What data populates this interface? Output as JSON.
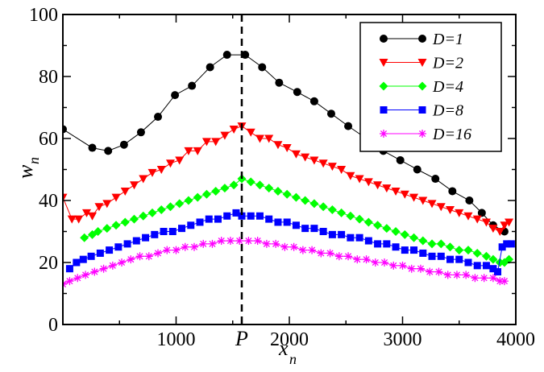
{
  "chart_data": {
    "type": "line",
    "xlim": [
      0,
      4000
    ],
    "ylim": [
      0,
      100
    ],
    "xticks": [
      1000,
      2000,
      3000,
      4000
    ],
    "yticks": [
      0,
      20,
      40,
      60,
      80,
      100
    ],
    "xlabel": "x",
    "xlabel_sub": "n",
    "ylabel": "w",
    "ylabel_sub": "n",
    "marker_line": {
      "x": 1580,
      "label": "P"
    },
    "legend_position": "top-right",
    "grid": false,
    "series": [
      {
        "name": "D=1",
        "color": "#000000",
        "marker": "circle",
        "x": [
          0,
          260,
          400,
          540,
          690,
          840,
          990,
          1140,
          1300,
          1450,
          1610,
          1760,
          1910,
          2070,
          2220,
          2370,
          2520,
          2680,
          2830,
          2980,
          3130,
          3290,
          3440,
          3590,
          3700,
          3800,
          3900
        ],
        "y": [
          63,
          57,
          56,
          58,
          62,
          67,
          74,
          77,
          83,
          87,
          87,
          83,
          78,
          75,
          72,
          68,
          64,
          60,
          56,
          53,
          50,
          47,
          43,
          40,
          36,
          32,
          30
        ]
      },
      {
        "name": "D=2",
        "color": "#ff0000",
        "marker": "triangle-down",
        "x": [
          0,
          80,
          140,
          210,
          260,
          320,
          390,
          470,
          550,
          630,
          710,
          790,
          870,
          950,
          1030,
          1110,
          1190,
          1270,
          1350,
          1430,
          1510,
          1580,
          1660,
          1740,
          1820,
          1900,
          1980,
          2060,
          2140,
          2220,
          2300,
          2380,
          2460,
          2540,
          2620,
          2700,
          2780,
          2860,
          2940,
          3020,
          3100,
          3180,
          3260,
          3340,
          3420,
          3500,
          3580,
          3660,
          3740,
          3800,
          3860,
          3900,
          3940
        ],
        "y": [
          41,
          34,
          34,
          36,
          35,
          38,
          39,
          41,
          43,
          45,
          47,
          49,
          50,
          52,
          53,
          56,
          56,
          59,
          59,
          61,
          63,
          64,
          62,
          60,
          60,
          58,
          57,
          55,
          54,
          53,
          52,
          51,
          50,
          48,
          47,
          46,
          45,
          44,
          43,
          42,
          41,
          40,
          39,
          38,
          37,
          36,
          35,
          34,
          33,
          31,
          30,
          32,
          33
        ]
      },
      {
        "name": "D=4",
        "color": "#00ff00",
        "marker": "diamond",
        "x": [
          190,
          260,
          310,
          390,
          470,
          550,
          630,
          710,
          790,
          870,
          950,
          1030,
          1110,
          1190,
          1270,
          1350,
          1430,
          1510,
          1580,
          1660,
          1740,
          1820,
          1900,
          1980,
          2060,
          2140,
          2220,
          2300,
          2380,
          2460,
          2540,
          2620,
          2700,
          2780,
          2860,
          2940,
          3020,
          3100,
          3180,
          3260,
          3340,
          3420,
          3500,
          3580,
          3660,
          3740,
          3800,
          3860,
          3900,
          3940
        ],
        "y": [
          28,
          29,
          30,
          31,
          32,
          33,
          34,
          35,
          36,
          37,
          38,
          39,
          40,
          41,
          42,
          43,
          44,
          45,
          47,
          46,
          45,
          44,
          43,
          42,
          41,
          40,
          39,
          38,
          37,
          36,
          35,
          34,
          33,
          32,
          31,
          30,
          29,
          28,
          27,
          26,
          26,
          25,
          24,
          24,
          23,
          22,
          21,
          20,
          20,
          21
        ]
      },
      {
        "name": "D=8",
        "color": "#0000ff",
        "marker": "square",
        "x": [
          60,
          120,
          180,
          250,
          330,
          410,
          490,
          570,
          650,
          730,
          810,
          890,
          970,
          1050,
          1130,
          1210,
          1290,
          1370,
          1450,
          1530,
          1580,
          1660,
          1740,
          1820,
          1900,
          1980,
          2060,
          2140,
          2220,
          2300,
          2380,
          2460,
          2540,
          2620,
          2700,
          2780,
          2860,
          2940,
          3020,
          3100,
          3180,
          3260,
          3340,
          3420,
          3500,
          3580,
          3660,
          3740,
          3800,
          3840,
          3880,
          3920,
          3960
        ],
        "y": [
          18,
          20,
          21,
          22,
          23,
          24,
          25,
          26,
          27,
          28,
          29,
          30,
          30,
          31,
          32,
          33,
          34,
          34,
          35,
          36,
          35,
          35,
          35,
          34,
          33,
          33,
          32,
          31,
          31,
          30,
          29,
          29,
          28,
          28,
          27,
          26,
          26,
          25,
          24,
          24,
          23,
          22,
          22,
          21,
          21,
          20,
          19,
          19,
          18,
          17,
          25,
          26,
          26
        ]
      },
      {
        "name": "D=16",
        "color": "#ff00ff",
        "marker": "asterisk",
        "x": [
          0,
          60,
          130,
          200,
          280,
          360,
          440,
          520,
          600,
          680,
          760,
          840,
          920,
          1000,
          1080,
          1160,
          1240,
          1320,
          1400,
          1480,
          1560,
          1640,
          1720,
          1800,
          1880,
          1960,
          2040,
          2120,
          2200,
          2280,
          2360,
          2440,
          2520,
          2600,
          2680,
          2760,
          2840,
          2920,
          3000,
          3080,
          3160,
          3240,
          3320,
          3400,
          3480,
          3560,
          3640,
          3720,
          3800,
          3860,
          3900
        ],
        "y": [
          13,
          14,
          15,
          16,
          17,
          18,
          19,
          20,
          21,
          22,
          22,
          23,
          24,
          24,
          25,
          25,
          26,
          26,
          27,
          27,
          27,
          27,
          27,
          26,
          26,
          25,
          25,
          24,
          24,
          23,
          23,
          22,
          22,
          21,
          21,
          20,
          20,
          19,
          19,
          18,
          18,
          17,
          17,
          16,
          16,
          16,
          15,
          15,
          15,
          14,
          14
        ]
      }
    ]
  }
}
